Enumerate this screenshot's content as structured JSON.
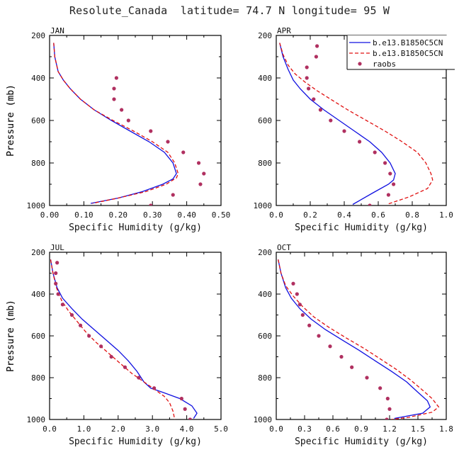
{
  "figure_title": "Resolute_Canada  latitude= 74.7 N longitude= 95 W",
  "legend": {
    "entries": [
      {
        "label": "b.e13.B1850C5CN",
        "style": "solid",
        "color": "#1010e0"
      },
      {
        "label": "b.e13.B1850C5CN",
        "style": "dashed",
        "color": "#e01010"
      },
      {
        "label": "raobs",
        "style": "dot",
        "color": "#b03060"
      }
    ]
  },
  "chart_data": [
    {
      "type": "line",
      "month": "JAN",
      "xlabel": "Specific Humidity (g/kg)",
      "ylabel": "Pressure (mb)",
      "xlim": [
        0,
        0.5
      ],
      "xticks": [
        0,
        0.1,
        0.2,
        0.3,
        0.4,
        0.5
      ],
      "xtick_labels": [
        "0.00",
        "0.10",
        "0.20",
        "0.30",
        "0.40",
        "0.50"
      ],
      "ylim": [
        1000,
        200
      ],
      "yticks": [
        200,
        400,
        600,
        800,
        1000
      ],
      "ytick_labels": [
        "200",
        "400",
        "600",
        "800",
        "1000"
      ],
      "series": [
        {
          "name": "b.e13.B1850C5CN",
          "style": "solid",
          "color": "#1010e0",
          "points": [
            [
              0.012,
              235
            ],
            [
              0.015,
              300
            ],
            [
              0.025,
              370
            ],
            [
              0.04,
              410
            ],
            [
              0.06,
              450
            ],
            [
              0.09,
              500
            ],
            [
              0.13,
              550
            ],
            [
              0.18,
              600
            ],
            [
              0.235,
              650
            ],
            [
              0.29,
              700
            ],
            [
              0.335,
              750
            ],
            [
              0.36,
              800
            ],
            [
              0.37,
              850
            ],
            [
              0.36,
              875
            ],
            [
              0.33,
              900
            ],
            [
              0.27,
              935
            ],
            [
              0.2,
              965
            ],
            [
              0.12,
              990
            ]
          ]
        },
        {
          "name": "b.e13.B1850C5CN",
          "style": "dashed",
          "color": "#e01010",
          "points": [
            [
              0.012,
              235
            ],
            [
              0.015,
              300
            ],
            [
              0.025,
              370
            ],
            [
              0.04,
              410
            ],
            [
              0.06,
              450
            ],
            [
              0.09,
              500
            ],
            [
              0.13,
              550
            ],
            [
              0.185,
              600
            ],
            [
              0.245,
              650
            ],
            [
              0.3,
              700
            ],
            [
              0.345,
              750
            ],
            [
              0.365,
              800
            ],
            [
              0.375,
              850
            ],
            [
              0.37,
              870
            ],
            [
              0.34,
              900
            ],
            [
              0.28,
              935
            ],
            [
              0.2,
              965
            ],
            [
              0.125,
              990
            ]
          ]
        },
        {
          "name": "raobs",
          "style": "dot",
          "color": "#b03060",
          "points": [
            [
              0.195,
              400
            ],
            [
              0.188,
              450
            ],
            [
              0.188,
              500
            ],
            [
              0.21,
              550
            ],
            [
              0.23,
              600
            ],
            [
              0.295,
              650
            ],
            [
              0.345,
              700
            ],
            [
              0.39,
              750
            ],
            [
              0.435,
              800
            ],
            [
              0.45,
              850
            ],
            [
              0.44,
              900
            ],
            [
              0.36,
              950
            ],
            [
              0.295,
              1000
            ]
          ]
        }
      ]
    },
    {
      "type": "line",
      "month": "APR",
      "xlabel": "Specific Humidity (g/kg)",
      "ylabel": "Pressure (mb)",
      "xlim": [
        0,
        1.0
      ],
      "xticks": [
        0,
        0.2,
        0.4,
        0.6,
        0.8,
        1.0
      ],
      "xtick_labels": [
        "0.0",
        "0.2",
        "0.4",
        "0.6",
        "0.8",
        "1.0"
      ],
      "ylim": [
        1000,
        200
      ],
      "yticks": [
        200,
        400,
        600,
        800,
        1000
      ],
      "ytick_labels": [
        "200",
        "400",
        "600",
        "800",
        "1000"
      ],
      "series": [
        {
          "name": "b.e13.B1850C5CN",
          "style": "solid",
          "color": "#1010e0",
          "points": [
            [
              0.02,
              235
            ],
            [
              0.04,
              300
            ],
            [
              0.07,
              360
            ],
            [
              0.1,
              410
            ],
            [
              0.14,
              450
            ],
            [
              0.2,
              500
            ],
            [
              0.28,
              550
            ],
            [
              0.37,
              600
            ],
            [
              0.46,
              650
            ],
            [
              0.55,
              700
            ],
            [
              0.62,
              750
            ],
            [
              0.67,
              800
            ],
            [
              0.7,
              850
            ],
            [
              0.69,
              880
            ],
            [
              0.66,
              900
            ],
            [
              0.57,
              940
            ],
            [
              0.45,
              995
            ]
          ]
        },
        {
          "name": "b.e13.B1850C5CN",
          "style": "dashed",
          "color": "#e01010",
          "points": [
            [
              0.02,
              235
            ],
            [
              0.04,
              290
            ],
            [
              0.07,
              340
            ],
            [
              0.11,
              380
            ],
            [
              0.17,
              420
            ],
            [
              0.24,
              460
            ],
            [
              0.32,
              500
            ],
            [
              0.42,
              550
            ],
            [
              0.53,
              600
            ],
            [
              0.64,
              650
            ],
            [
              0.74,
              700
            ],
            [
              0.83,
              750
            ],
            [
              0.88,
              800
            ],
            [
              0.91,
              850
            ],
            [
              0.92,
              880
            ],
            [
              0.89,
              920
            ],
            [
              0.78,
              960
            ],
            [
              0.65,
              995
            ]
          ]
        },
        {
          "name": "raobs",
          "style": "dot",
          "color": "#b03060",
          "points": [
            [
              0.24,
              250
            ],
            [
              0.235,
              300
            ],
            [
              0.18,
              350
            ],
            [
              0.18,
              400
            ],
            [
              0.19,
              450
            ],
            [
              0.22,
              500
            ],
            [
              0.26,
              550
            ],
            [
              0.32,
              600
            ],
            [
              0.4,
              650
            ],
            [
              0.49,
              700
            ],
            [
              0.58,
              750
            ],
            [
              0.64,
              800
            ],
            [
              0.67,
              850
            ],
            [
              0.69,
              900
            ],
            [
              0.66,
              950
            ],
            [
              0.55,
              1000
            ]
          ]
        }
      ]
    },
    {
      "type": "line",
      "month": "JUL",
      "xlabel": "Specific Humidity (g/kg)",
      "ylabel": "Pressure (mb)",
      "xlim": [
        0,
        5.0
      ],
      "xticks": [
        0,
        1,
        2,
        3,
        4,
        5
      ],
      "xtick_labels": [
        "0.0",
        "1.0",
        "2.0",
        "3.0",
        "4.0",
        "5.0"
      ],
      "ylim": [
        1000,
        200
      ],
      "yticks": [
        200,
        400,
        600,
        800,
        1000
      ],
      "ytick_labels": [
        "200",
        "400",
        "600",
        "800",
        "1000"
      ],
      "series": [
        {
          "name": "b.e13.B1850C5CN",
          "style": "solid",
          "color": "#1010e0",
          "points": [
            [
              0.03,
              235
            ],
            [
              0.1,
              300
            ],
            [
              0.22,
              370
            ],
            [
              0.38,
              420
            ],
            [
              0.65,
              470
            ],
            [
              0.95,
              520
            ],
            [
              1.3,
              570
            ],
            [
              1.65,
              620
            ],
            [
              2.0,
              670
            ],
            [
              2.3,
              720
            ],
            [
              2.55,
              770
            ],
            [
              2.75,
              820
            ],
            [
              2.95,
              850
            ],
            [
              3.3,
              870
            ],
            [
              3.8,
              900
            ],
            [
              4.15,
              935
            ],
            [
              4.3,
              970
            ],
            [
              4.2,
              995
            ]
          ]
        },
        {
          "name": "b.e13.B1850C5CN",
          "style": "dashed",
          "color": "#e01010",
          "points": [
            [
              0.03,
              235
            ],
            [
              0.1,
              300
            ],
            [
              0.2,
              370
            ],
            [
              0.35,
              430
            ],
            [
              0.55,
              480
            ],
            [
              0.8,
              530
            ],
            [
              1.05,
              580
            ],
            [
              1.35,
              630
            ],
            [
              1.7,
              680
            ],
            [
              2.05,
              730
            ],
            [
              2.4,
              780
            ],
            [
              2.75,
              820
            ],
            [
              3.1,
              860
            ],
            [
              3.35,
              890
            ],
            [
              3.5,
              920
            ],
            [
              3.6,
              960
            ],
            [
              3.65,
              1000
            ]
          ]
        },
        {
          "name": "raobs",
          "style": "dot",
          "color": "#b03060",
          "points": [
            [
              0.22,
              250
            ],
            [
              0.18,
              300
            ],
            [
              0.18,
              350
            ],
            [
              0.25,
              400
            ],
            [
              0.38,
              450
            ],
            [
              0.65,
              500
            ],
            [
              0.9,
              550
            ],
            [
              1.15,
              600
            ],
            [
              1.5,
              650
            ],
            [
              1.8,
              700
            ],
            [
              2.2,
              750
            ],
            [
              2.6,
              800
            ],
            [
              3.05,
              850
            ],
            [
              3.85,
              900
            ],
            [
              3.95,
              950
            ],
            [
              4.1,
              1000
            ]
          ]
        }
      ]
    },
    {
      "type": "line",
      "month": "OCT",
      "xlabel": "Specific Humidity (g/kg)",
      "ylabel": "Pressure (mb)",
      "xlim": [
        0,
        1.8
      ],
      "xticks": [
        0,
        0.3,
        0.6,
        0.9,
        1.2,
        1.5,
        1.8
      ],
      "xtick_labels": [
        "0.0",
        "0.3",
        "0.6",
        "0.9",
        "1.2",
        "1.5",
        "1.8"
      ],
      "ylim": [
        1000,
        200
      ],
      "yticks": [
        200,
        400,
        600,
        800,
        1000
      ],
      "ytick_labels": [
        "200",
        "400",
        "600",
        "800",
        "1000"
      ],
      "series": [
        {
          "name": "b.e13.B1850C5CN",
          "style": "solid",
          "color": "#1010e0",
          "points": [
            [
              0.02,
              235
            ],
            [
              0.05,
              300
            ],
            [
              0.1,
              370
            ],
            [
              0.16,
              420
            ],
            [
              0.25,
              470
            ],
            [
              0.37,
              520
            ],
            [
              0.52,
              570
            ],
            [
              0.7,
              620
            ],
            [
              0.88,
              670
            ],
            [
              1.05,
              720
            ],
            [
              1.22,
              770
            ],
            [
              1.38,
              820
            ],
            [
              1.5,
              870
            ],
            [
              1.6,
              910
            ],
            [
              1.63,
              940
            ],
            [
              1.55,
              970
            ],
            [
              1.25,
              995
            ]
          ]
        },
        {
          "name": "b.e13.B1850C5CN",
          "style": "dashed",
          "color": "#e01010",
          "points": [
            [
              0.02,
              235
            ],
            [
              0.05,
              300
            ],
            [
              0.1,
              360
            ],
            [
              0.18,
              410
            ],
            [
              0.28,
              460
            ],
            [
              0.4,
              510
            ],
            [
              0.56,
              560
            ],
            [
              0.74,
              610
            ],
            [
              0.93,
              660
            ],
            [
              1.1,
              710
            ],
            [
              1.27,
              760
            ],
            [
              1.42,
              810
            ],
            [
              1.55,
              860
            ],
            [
              1.65,
              900
            ],
            [
              1.72,
              940
            ],
            [
              1.65,
              965
            ],
            [
              1.4,
              990
            ],
            [
              1.22,
              1000
            ]
          ]
        },
        {
          "name": "raobs",
          "style": "dot",
          "color": "#b03060",
          "points": [
            [
              0.18,
              350
            ],
            [
              0.22,
              400
            ],
            [
              0.25,
              450
            ],
            [
              0.28,
              500
            ],
            [
              0.35,
              550
            ],
            [
              0.45,
              600
            ],
            [
              0.57,
              650
            ],
            [
              0.69,
              700
            ],
            [
              0.8,
              750
            ],
            [
              0.96,
              800
            ],
            [
              1.1,
              850
            ],
            [
              1.18,
              900
            ],
            [
              1.2,
              950
            ],
            [
              1.17,
              1000
            ]
          ]
        }
      ]
    }
  ]
}
